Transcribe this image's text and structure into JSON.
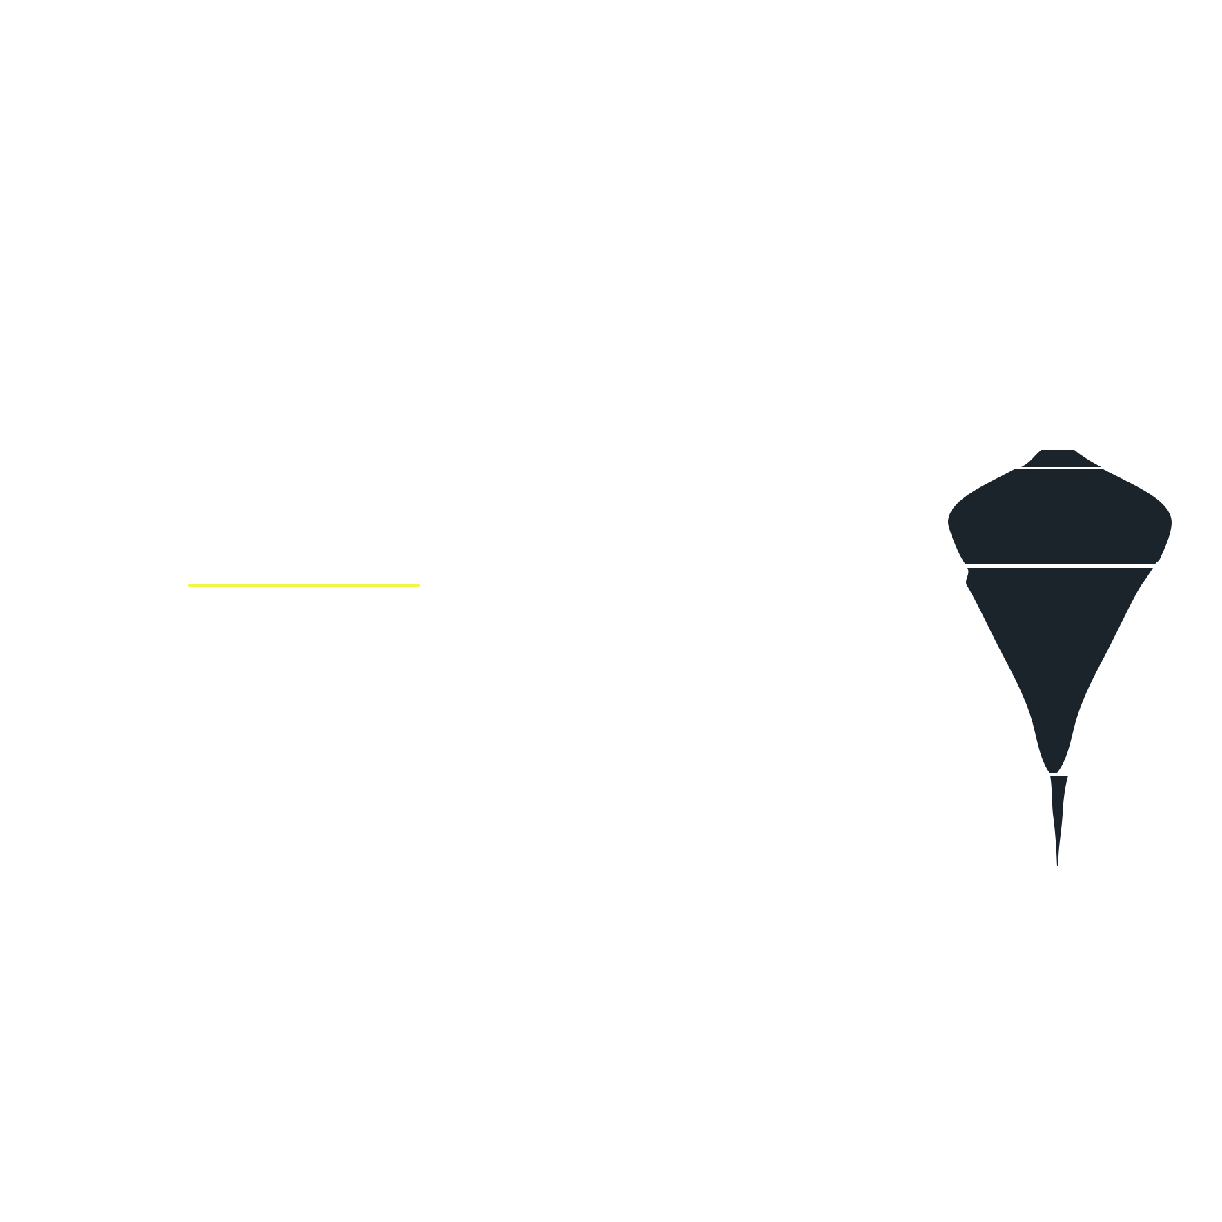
{
  "canvas": {
    "background": "#ffffff"
  },
  "highlight_bar": {
    "color": "#f2f746"
  },
  "spinning_top": {
    "icon": "spinning-top-icon",
    "fill": "#1b232b",
    "band_color": "#ffffff"
  }
}
